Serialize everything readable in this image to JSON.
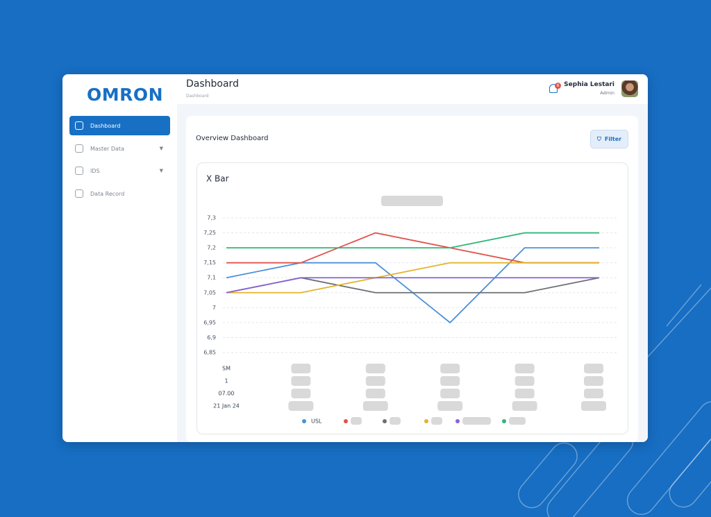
{
  "sidebar": {
    "logo": "OMRON",
    "nav": [
      "Dashboard",
      "Master Data",
      "IDS",
      "Data Record"
    ]
  },
  "header": {
    "title": "Dashboard",
    "breadcrumb": "Dashboard",
    "notification_count": 6,
    "user": {
      "name": "Sephia Lestari",
      "role": "Admin"
    }
  },
  "content": {
    "title": "Overview Dashboard",
    "filter": "Filter"
  },
  "chart_data": {
    "type": "line",
    "title": "X Bar",
    "categories": [
      null,
      null,
      null,
      null,
      null,
      null
    ],
    "x_label_rows": [
      "SM",
      "1",
      "07.00",
      "21 Jan 24"
    ],
    "ylim": [
      6.85,
      7.3
    ],
    "yticks": [
      {
        "value": 7.3,
        "label": "7,3"
      },
      {
        "value": 7.25,
        "label": "7,25"
      },
      {
        "value": 7.2,
        "label": "7,2"
      },
      {
        "value": 7.15,
        "label": "7,15"
      },
      {
        "value": 7.1,
        "label": "7,1"
      },
      {
        "value": 7.05,
        "label": "7,05"
      },
      7,
      {
        "value": 6.95,
        "label": "6,95"
      },
      {
        "value": 6.9,
        "label": "6,9"
      },
      {
        "value": 6.85,
        "label": "6,85"
      }
    ],
    "grid": true,
    "series": [
      {
        "name": "USL",
        "color": "#4a90d9",
        "values": [
          7.1,
          7.15,
          7.15,
          6.95,
          7.2,
          7.2
        ]
      },
      {
        "color": "#e0534a",
        "values": [
          7.15,
          7.15,
          7.25,
          7.2,
          7.15,
          7.15
        ]
      },
      {
        "color": "#6b6f73",
        "values": [
          7.05,
          7.1,
          7.05,
          7.05,
          7.05,
          7.1
        ]
      },
      {
        "color": "#e3b42a",
        "values": [
          7.05,
          7.05,
          7.1,
          7.15,
          7.15,
          7.15
        ]
      },
      {
        "color": "#8a62d6",
        "values": [
          7.05,
          7.1,
          7.1,
          7.1,
          7.1,
          7.1
        ]
      },
      {
        "color": "#2fb67a",
        "values": [
          7.2,
          7.2,
          7.2,
          7.2,
          7.25,
          7.25
        ]
      }
    ]
  }
}
